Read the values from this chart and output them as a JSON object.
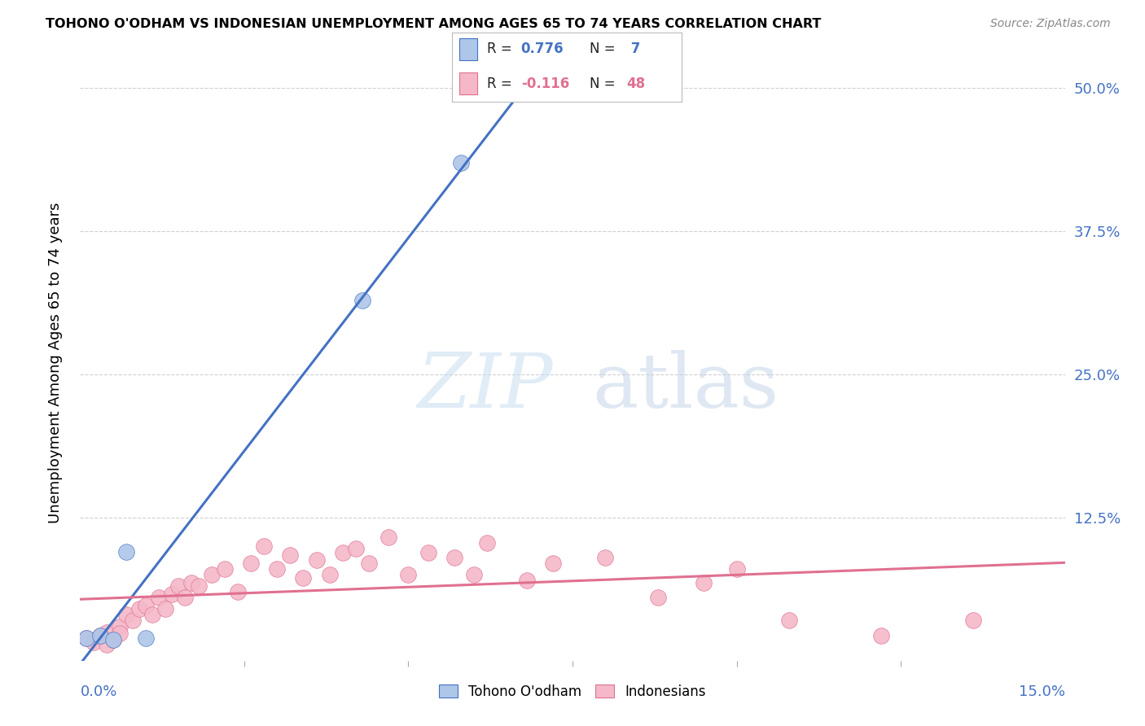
{
  "title": "TOHONO O'ODHAM VS INDONESIAN UNEMPLOYMENT AMONG AGES 65 TO 74 YEARS CORRELATION CHART",
  "source": "Source: ZipAtlas.com",
  "ylabel": "Unemployment Among Ages 65 to 74 years",
  "xlim": [
    0.0,
    0.15
  ],
  "ylim": [
    0.0,
    0.52
  ],
  "tohono_color": "#aec6e8",
  "tohono_edge_color": "#4472c4",
  "indonesian_color": "#f4b8c8",
  "indonesian_edge_color": "#e07090",
  "tohono_line_color": "#4472c4",
  "indonesian_line_color": "#e07090",
  "grid_color": "#d0d0d0",
  "watermark_color": "#ddeeff",
  "tohono_x": [
    0.001,
    0.003,
    0.005,
    0.007,
    0.01,
    0.043,
    0.058
  ],
  "tohono_y": [
    0.02,
    0.022,
    0.018,
    0.095,
    0.02,
    0.315,
    0.435
  ],
  "indo_x": [
    0.001,
    0.002,
    0.003,
    0.004,
    0.004,
    0.005,
    0.006,
    0.006,
    0.007,
    0.008,
    0.009,
    0.01,
    0.011,
    0.012,
    0.013,
    0.014,
    0.015,
    0.016,
    0.017,
    0.018,
    0.02,
    0.022,
    0.024,
    0.026,
    0.028,
    0.03,
    0.032,
    0.034,
    0.036,
    0.038,
    0.04,
    0.042,
    0.044,
    0.047,
    0.05,
    0.053,
    0.057,
    0.06,
    0.062,
    0.068,
    0.072,
    0.08,
    0.088,
    0.095,
    0.1,
    0.108,
    0.122,
    0.136
  ],
  "indo_y": [
    0.02,
    0.016,
    0.022,
    0.014,
    0.025,
    0.018,
    0.03,
    0.024,
    0.04,
    0.035,
    0.045,
    0.048,
    0.04,
    0.055,
    0.045,
    0.058,
    0.065,
    0.055,
    0.068,
    0.065,
    0.075,
    0.08,
    0.06,
    0.085,
    0.1,
    0.08,
    0.092,
    0.072,
    0.088,
    0.075,
    0.094,
    0.098,
    0.085,
    0.108,
    0.075,
    0.094,
    0.09,
    0.075,
    0.103,
    0.07,
    0.085,
    0.09,
    0.055,
    0.068,
    0.08,
    0.035,
    0.022,
    0.035
  ],
  "ytick_values": [
    0.0,
    0.125,
    0.25,
    0.375,
    0.5
  ],
  "ytick_labels": [
    "",
    "12.5%",
    "25.0%",
    "37.5%",
    "50.0%"
  ],
  "marker_size": 200
}
